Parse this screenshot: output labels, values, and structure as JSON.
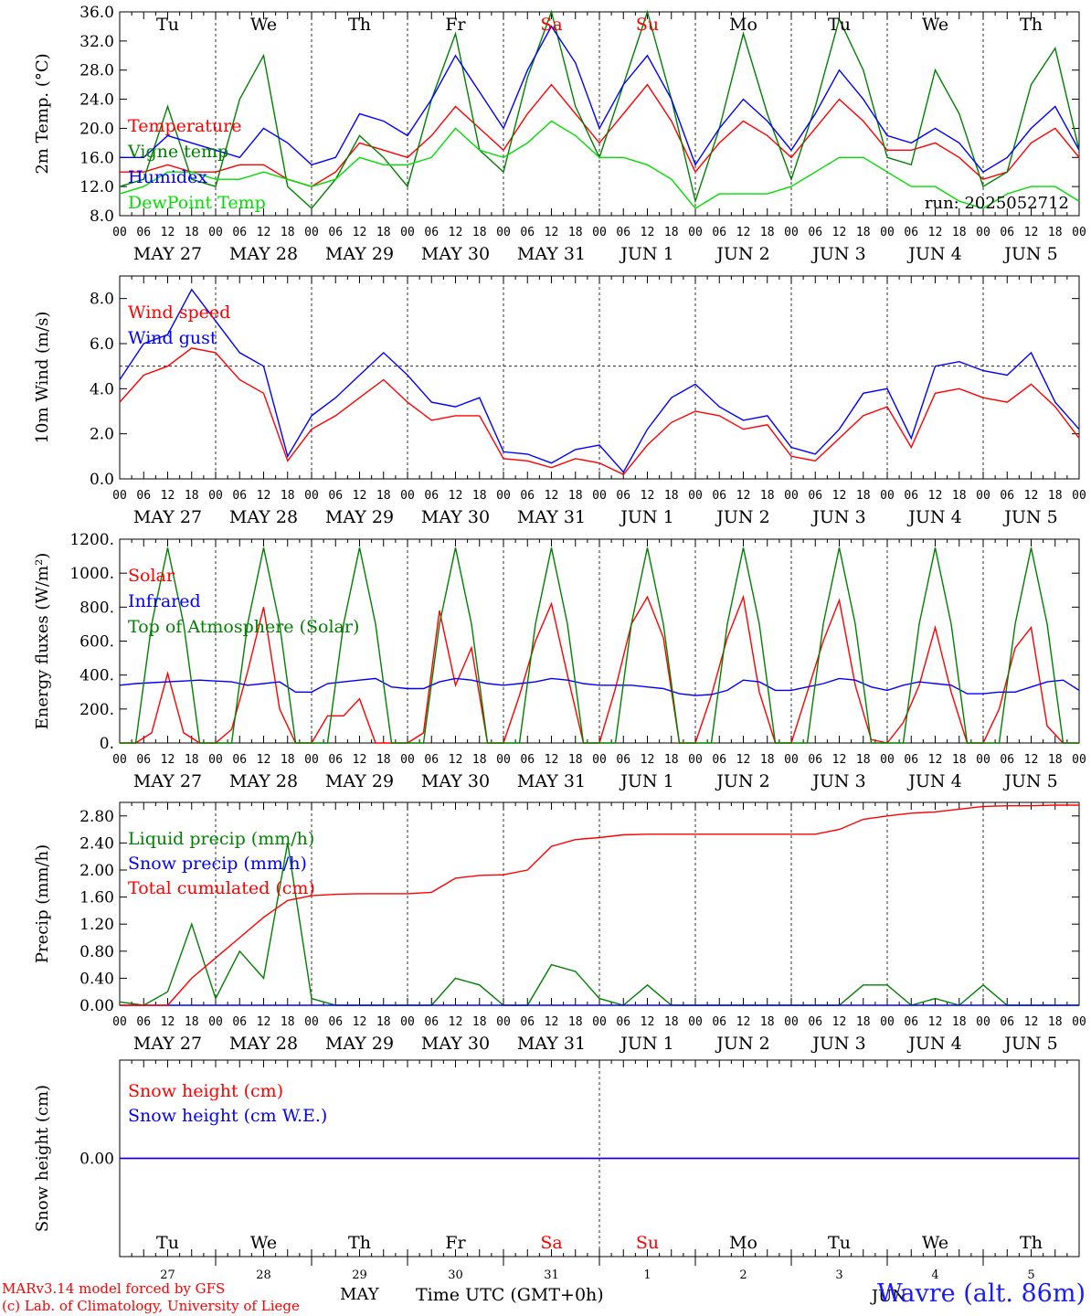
{
  "run_label": "run: 2025052712",
  "weekdays": [
    "Tu",
    "We",
    "Th",
    "Fr",
    "Sa",
    "Su",
    "Mo",
    "Tu",
    "We",
    "Th"
  ],
  "weekend_indices": [
    4,
    5
  ],
  "dates": [
    "MAY 27",
    "MAY 28",
    "MAY 29",
    "MAY 30",
    "MAY 31",
    "JUN  1",
    "JUN  2",
    "JUN  3",
    "JUN  4",
    "JUN  5"
  ],
  "day_numbers": [
    "27",
    "28",
    "29",
    "30",
    "31",
    "1",
    "2",
    "3",
    "4",
    "5"
  ],
  "hour_ticks": [
    "00",
    "06",
    "12",
    "18"
  ],
  "last_hour_tick": "00",
  "month_label": "MAY",
  "month_label_2": "JUN",
  "xlabel": "Time UTC (GMT+0h)",
  "credits": [
    "MARv3.14 model forced by GFS",
    "(c) Lab. of Climatology, University of Liege"
  ],
  "station": "Wavre (alt. 86m)",
  "colors": {
    "red": "#ff0000",
    "green": "#008000",
    "blue": "#0000ff",
    "lightgreen": "#00dd00"
  },
  "chart_data": [
    {
      "type": "line",
      "ylabel": "2m Temp. (°C)",
      "ylim": [
        8,
        36
      ],
      "yticks": [
        "8.0",
        "12.0",
        "16.0",
        "20.0",
        "24.0",
        "28.0",
        "32.0",
        "36.0"
      ],
      "x_hours": [
        0,
        6,
        12,
        18,
        24,
        30,
        36,
        42,
        48,
        54,
        60,
        66,
        72,
        78,
        84,
        90,
        96,
        102,
        108,
        114,
        120,
        126,
        132,
        138,
        144,
        150,
        156,
        162,
        168,
        174,
        180,
        186,
        192,
        198,
        204,
        210,
        216,
        222,
        228,
        234,
        240
      ],
      "series": [
        {
          "name": "Temperature",
          "color": "red",
          "values": [
            14,
            14,
            15,
            14,
            14,
            15,
            15,
            13,
            12,
            14,
            18,
            17,
            16,
            19,
            23,
            20,
            17,
            22,
            26,
            22,
            18,
            22,
            26,
            21,
            14,
            18,
            21,
            19,
            16,
            20,
            24,
            21,
            17,
            17,
            18,
            16,
            13,
            14,
            18,
            20,
            16
          ]
        },
        {
          "name": "Vigne temp",
          "color": "green",
          "values": [
            12,
            13,
            23,
            13,
            12,
            24,
            30,
            12,
            9,
            13,
            19,
            16,
            12,
            24,
            33,
            17,
            14,
            27,
            36,
            23,
            16,
            26,
            36,
            24,
            10,
            20,
            33,
            22,
            13,
            23,
            35,
            28,
            16,
            15,
            28,
            22,
            12,
            14,
            26,
            31,
            17
          ]
        },
        {
          "name": "Humidex",
          "color": "blue",
          "values": [
            16,
            16,
            19,
            18,
            17,
            16,
            20,
            18,
            15,
            16,
            22,
            21,
            19,
            24,
            30,
            25,
            20,
            28,
            34,
            29,
            20,
            26,
            30,
            24,
            15,
            20,
            24,
            21,
            17,
            22,
            28,
            24,
            19,
            18,
            20,
            18,
            14,
            16,
            20,
            23,
            17
          ]
        },
        {
          "name": "DewPoint Temp",
          "color": "lightgreen",
          "values": [
            11,
            12,
            14,
            14,
            13,
            13,
            14,
            13,
            12,
            13,
            16,
            15,
            15,
            16,
            20,
            17,
            16,
            18,
            21,
            19,
            16,
            16,
            15,
            13,
            9,
            11,
            11,
            11,
            12,
            14,
            16,
            16,
            14,
            12,
            12,
            10,
            9,
            11,
            12,
            12,
            10
          ]
        }
      ]
    },
    {
      "type": "line",
      "ylabel": "10m Wind (m/s)",
      "ylim": [
        0,
        9
      ],
      "yticks": [
        "0.0",
        "2.0",
        "4.0",
        "6.0",
        "8.0"
      ],
      "reference_line": 5,
      "x_hours": [
        0,
        6,
        12,
        18,
        24,
        30,
        36,
        42,
        48,
        54,
        60,
        66,
        72,
        78,
        84,
        90,
        96,
        102,
        108,
        114,
        120,
        126,
        132,
        138,
        144,
        150,
        156,
        162,
        168,
        174,
        180,
        186,
        192,
        198,
        204,
        210,
        216,
        222,
        228,
        234,
        240
      ],
      "series": [
        {
          "name": "Wind speed",
          "color": "red",
          "values": [
            3.4,
            4.6,
            5.0,
            5.8,
            5.6,
            4.4,
            3.8,
            0.8,
            2.2,
            2.8,
            3.6,
            4.4,
            3.4,
            2.6,
            2.8,
            2.8,
            0.9,
            0.8,
            0.5,
            0.9,
            0.7,
            0.2,
            1.5,
            2.5,
            3.0,
            2.8,
            2.2,
            2.4,
            1.0,
            0.8,
            1.8,
            2.8,
            3.2,
            1.4,
            3.8,
            4.0,
            3.6,
            3.4,
            4.2,
            3.2,
            1.8
          ]
        },
        {
          "name": "Wind gust",
          "color": "blue",
          "values": [
            4.4,
            6.0,
            6.4,
            8.4,
            7.0,
            5.6,
            5.0,
            1.0,
            2.8,
            3.6,
            4.6,
            5.6,
            4.6,
            3.4,
            3.2,
            3.6,
            1.2,
            1.1,
            0.7,
            1.3,
            1.5,
            0.3,
            2.2,
            3.6,
            4.2,
            3.2,
            2.6,
            2.8,
            1.4,
            1.1,
            2.2,
            3.8,
            4.0,
            1.8,
            5.0,
            5.2,
            4.8,
            4.6,
            5.6,
            3.4,
            2.2
          ]
        }
      ]
    },
    {
      "type": "line",
      "ylabel": "Energy fluxes (W/m²)",
      "ylim": [
        0,
        1200
      ],
      "yticks": [
        "0.",
        "200.",
        "400.",
        "600.",
        "800.",
        "1000.",
        "1200."
      ],
      "x_hours": [
        0,
        4,
        8,
        12,
        16,
        20,
        24,
        28,
        32,
        36,
        40,
        44,
        48,
        52,
        56,
        60,
        64,
        68,
        72,
        76,
        80,
        84,
        88,
        92,
        96,
        100,
        104,
        108,
        112,
        116,
        120,
        124,
        128,
        132,
        136,
        140,
        144,
        148,
        152,
        156,
        160,
        164,
        168,
        172,
        176,
        180,
        184,
        188,
        192,
        196,
        200,
        204,
        208,
        212,
        216,
        220,
        224,
        228,
        232,
        236,
        240
      ],
      "series": [
        {
          "name": "Solar",
          "color": "red",
          "values": [
            0,
            0,
            60,
            410,
            60,
            0,
            0,
            80,
            420,
            800,
            200,
            0,
            0,
            160,
            160,
            260,
            0,
            0,
            0,
            60,
            780,
            340,
            560,
            0,
            0,
            280,
            600,
            820,
            400,
            0,
            0,
            320,
            700,
            860,
            620,
            0,
            0,
            280,
            620,
            860,
            300,
            0,
            0,
            300,
            600,
            840,
            340,
            20,
            0,
            120,
            340,
            680,
            300,
            0,
            0,
            200,
            560,
            680,
            100,
            0,
            0
          ]
        },
        {
          "name": "Infrared",
          "color": "blue",
          "values": [
            340,
            350,
            355,
            360,
            365,
            370,
            365,
            360,
            340,
            350,
            360,
            300,
            300,
            350,
            360,
            370,
            380,
            330,
            320,
            320,
            360,
            380,
            370,
            350,
            340,
            350,
            360,
            380,
            370,
            350,
            340,
            340,
            340,
            330,
            320,
            290,
            280,
            285,
            310,
            370,
            360,
            310,
            310,
            330,
            350,
            380,
            370,
            330,
            310,
            340,
            360,
            350,
            340,
            290,
            290,
            300,
            300,
            330,
            360,
            370,
            310
          ]
        },
        {
          "name": "Top of Atmosphere (Solar)",
          "color": "green",
          "values": [
            0,
            0,
            700,
            1150,
            700,
            0,
            0,
            0,
            700,
            1150,
            700,
            0,
            0,
            0,
            700,
            1150,
            700,
            0,
            0,
            0,
            700,
            1150,
            700,
            0,
            0,
            0,
            700,
            1150,
            700,
            0,
            0,
            0,
            700,
            1150,
            700,
            0,
            0,
            0,
            700,
            1150,
            700,
            0,
            0,
            0,
            700,
            1150,
            700,
            0,
            0,
            0,
            700,
            1150,
            700,
            0,
            0,
            0,
            700,
            1150,
            700,
            0,
            0
          ]
        }
      ]
    },
    {
      "type": "line",
      "ylabel": "Precip (mm/h)",
      "ylim": [
        0,
        3
      ],
      "yticks": [
        "0.00",
        "0.40",
        "0.80",
        "1.20",
        "1.60",
        "2.00",
        "2.40",
        "2.80"
      ],
      "x_hours": [
        0,
        6,
        12,
        18,
        24,
        30,
        36,
        42,
        48,
        54,
        60,
        66,
        72,
        78,
        84,
        90,
        96,
        102,
        108,
        114,
        120,
        126,
        132,
        138,
        144,
        150,
        156,
        162,
        168,
        174,
        180,
        186,
        192,
        198,
        204,
        210,
        216,
        222,
        228,
        234,
        240
      ],
      "series": [
        {
          "name": "Liquid precip (mm/h)",
          "color": "green",
          "values": [
            0.05,
            0.0,
            0.2,
            1.2,
            0.1,
            0.8,
            0.4,
            2.4,
            0.1,
            0.0,
            0.0,
            0.0,
            0.0,
            0.0,
            0.4,
            0.3,
            0.0,
            0.0,
            0.6,
            0.5,
            0.1,
            0.0,
            0.3,
            0.0,
            0.0,
            0.0,
            0.0,
            0.0,
            0.0,
            0.0,
            0.0,
            0.3,
            0.3,
            0.0,
            0.1,
            0.0,
            0.3,
            0.0,
            0.0,
            0.0,
            0.0
          ]
        },
        {
          "name": "Snow precip (mm/h)",
          "color": "blue",
          "values": [
            0,
            0,
            0,
            0,
            0,
            0,
            0,
            0,
            0,
            0,
            0,
            0,
            0,
            0,
            0,
            0,
            0,
            0,
            0,
            0,
            0,
            0,
            0,
            0,
            0,
            0,
            0,
            0,
            0,
            0,
            0,
            0,
            0,
            0,
            0,
            0,
            0,
            0,
            0,
            0,
            0
          ]
        },
        {
          "name": "Total cumulated (cm)",
          "color": "red",
          "values": [
            0.0,
            0.0,
            0.0,
            0.4,
            0.7,
            1.0,
            1.3,
            1.55,
            1.62,
            1.64,
            1.65,
            1.65,
            1.65,
            1.67,
            1.88,
            1.92,
            1.93,
            2.0,
            2.35,
            2.45,
            2.48,
            2.52,
            2.53,
            2.53,
            2.53,
            2.53,
            2.53,
            2.53,
            2.53,
            2.53,
            2.6,
            2.75,
            2.8,
            2.84,
            2.86,
            2.9,
            2.94,
            2.95,
            2.95,
            2.96,
            2.96
          ]
        }
      ]
    },
    {
      "type": "line",
      "ylabel": "Snow height (cm)",
      "ylim": [
        -1,
        1
      ],
      "yticks": [
        "0.00"
      ],
      "x_hours": [
        0,
        240
      ],
      "series": [
        {
          "name": "Snow height (cm)",
          "color": "red",
          "values": [
            0,
            0
          ]
        },
        {
          "name": "Snow height (cm W.E.)",
          "color": "blue",
          "values": [
            0,
            0
          ]
        }
      ]
    }
  ]
}
